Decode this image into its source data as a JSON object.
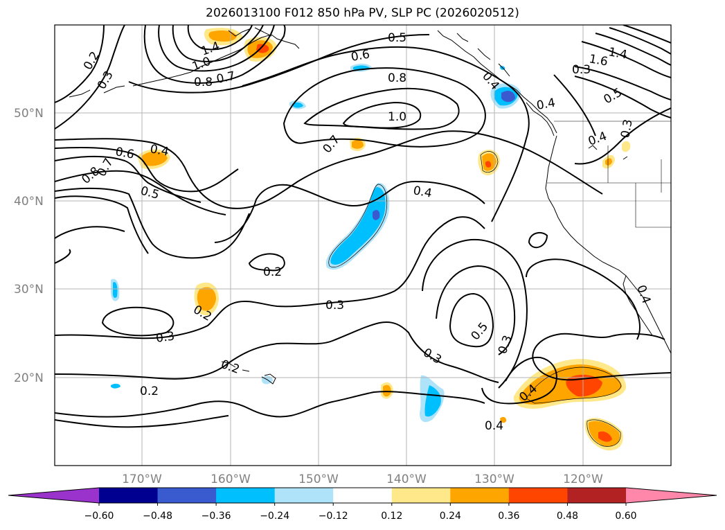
{
  "title": "2026013100 F012 850 hPa PV, SLP PC (2026020512)",
  "map": {
    "lat_labels": [
      "50°N",
      "40°N",
      "30°N",
      "20°N"
    ],
    "lon_labels": [
      "170°W",
      "160°W",
      "150°W",
      "140°W",
      "130°W",
      "120°W"
    ],
    "contour_labels": [
      "0.2",
      "0.3",
      "1.4",
      "1.0",
      "0.8",
      "0.7",
      "0.5",
      "0.6",
      "0.8",
      "1.0",
      "0.7",
      "0.4",
      "1.4",
      "1.6",
      "0.3",
      "0.5",
      "0.4",
      "0.4",
      "0.3",
      "0.6",
      "0.4",
      "0.8",
      "0.7",
      "0.5",
      "0.4",
      "0.2",
      "0.3",
      "0.2",
      "0.3",
      "0.2",
      "0.3",
      "0.2",
      "0.5",
      "0.3",
      "0.4",
      "0.4",
      "0.4"
    ]
  },
  "colorbar": {
    "tick_labels": [
      "−0.60",
      "−0.48",
      "−0.36",
      "−0.24",
      "−0.12",
      "0.12",
      "0.24",
      "0.36",
      "0.48",
      "0.60"
    ],
    "colors": [
      "#9933cc",
      "#000090",
      "#3a5bcf",
      "#00bfff",
      "#aee3f9",
      "#ffffff",
      "#ffe88a",
      "#ffa500",
      "#ff4500",
      "#b22222",
      "#ff88aa"
    ],
    "extend": "both"
  }
}
